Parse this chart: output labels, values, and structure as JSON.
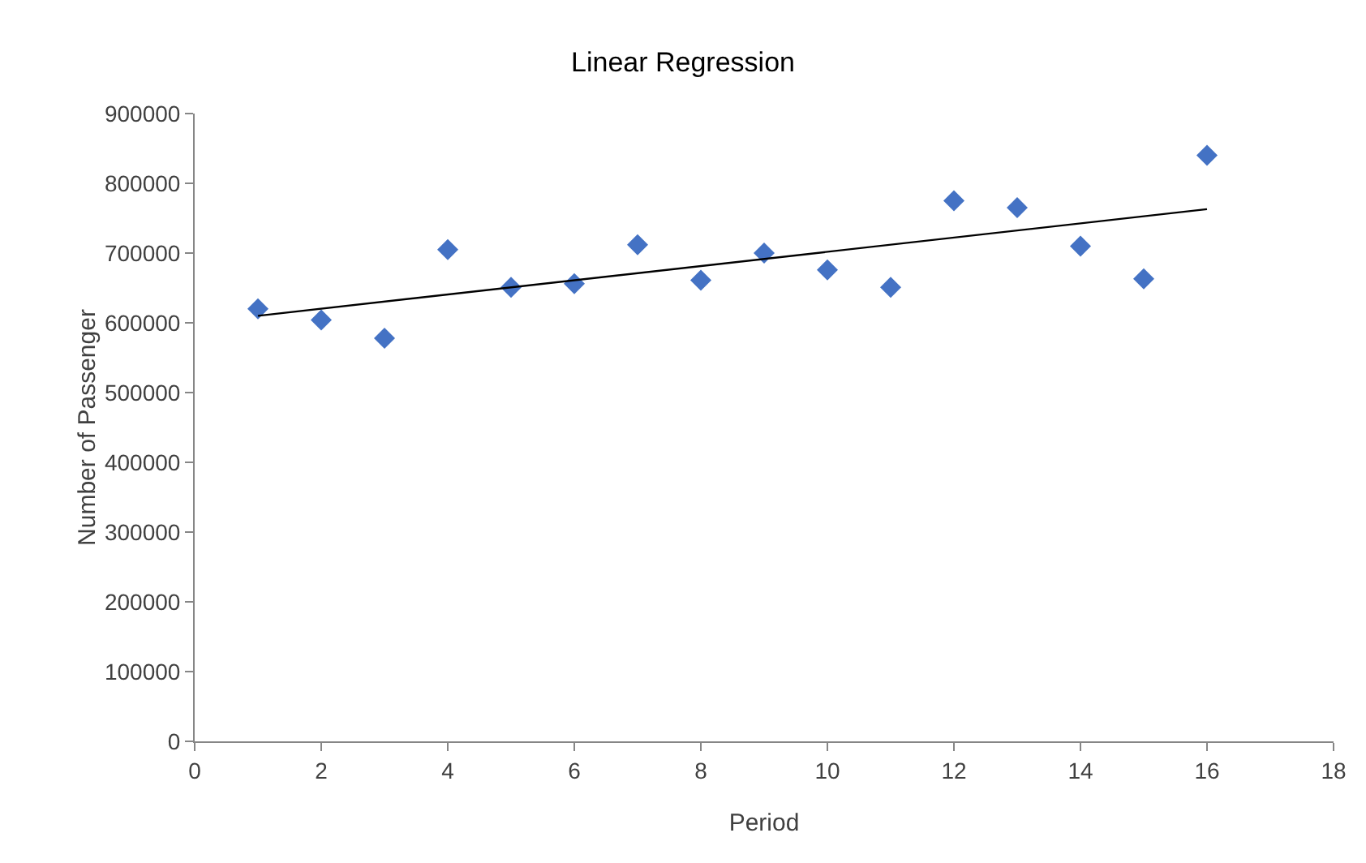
{
  "chart_data": {
    "type": "scatter",
    "title": "Linear Regression",
    "xlabel": "Period",
    "ylabel": "Number of Passenger",
    "x": [
      1,
      2,
      3,
      4,
      5,
      6,
      7,
      8,
      9,
      10,
      11,
      12,
      13,
      14,
      15,
      16
    ],
    "series": [
      {
        "type": "scatter",
        "color": "#4472c4",
        "marker": "diamond",
        "values": [
          620000,
          604000,
          578000,
          705000,
          651000,
          656000,
          712000,
          661000,
          700000,
          676000,
          651000,
          775000,
          765000,
          710000,
          663000,
          840000
        ]
      },
      {
        "type": "line",
        "color": "#000000",
        "x": [
          1,
          16
        ],
        "values": [
          610000,
          763000
        ]
      }
    ],
    "xlim": [
      0,
      18
    ],
    "xticks": [
      0,
      2,
      4,
      6,
      8,
      10,
      12,
      14,
      16,
      18
    ],
    "ylim": [
      0,
      900000
    ],
    "yticks": [
      0,
      100000,
      200000,
      300000,
      400000,
      500000,
      600000,
      700000,
      800000,
      900000
    ],
    "grid": false,
    "legend": false
  }
}
